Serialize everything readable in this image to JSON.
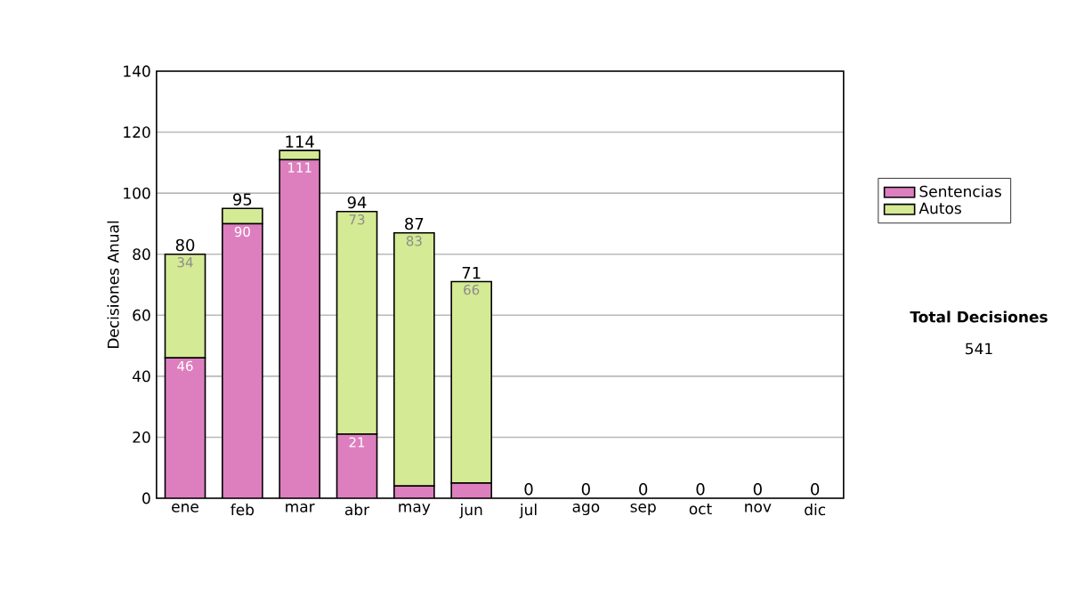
{
  "chart_data": {
    "type": "bar",
    "stacked": true,
    "ylabel": "Decisiones Anual",
    "categories": [
      "ene",
      "feb",
      "mar",
      "abr",
      "may",
      "jun",
      "jul",
      "ago",
      "sep",
      "oct",
      "nov",
      "dic"
    ],
    "series": [
      {
        "name": "Sentencias",
        "color": "#dd7fbf",
        "values": [
          46,
          90,
          111,
          21,
          4,
          5,
          0,
          0,
          0,
          0,
          0,
          0
        ],
        "value_labels": [
          "46",
          "90",
          "111",
          "21",
          null,
          null,
          null,
          null,
          null,
          null,
          null,
          null
        ]
      },
      {
        "name": "Autos",
        "color": "#d4ea94",
        "values": [
          34,
          5,
          3,
          73,
          83,
          66,
          0,
          0,
          0,
          0,
          0,
          0
        ],
        "value_labels": [
          "34",
          null,
          null,
          "73",
          "83",
          "66",
          null,
          null,
          null,
          null,
          null,
          null
        ]
      }
    ],
    "totals": [
      "80",
      "95",
      "114",
      "94",
      "87",
      "71",
      "0",
      "0",
      "0",
      "0",
      "0",
      "0"
    ],
    "ylim": [
      0,
      140
    ],
    "yticks": [
      0,
      20,
      40,
      60,
      80,
      100,
      120,
      140
    ],
    "grid": "y",
    "legend": "right",
    "annotations": [
      "Total Decisiones",
      "541"
    ]
  }
}
